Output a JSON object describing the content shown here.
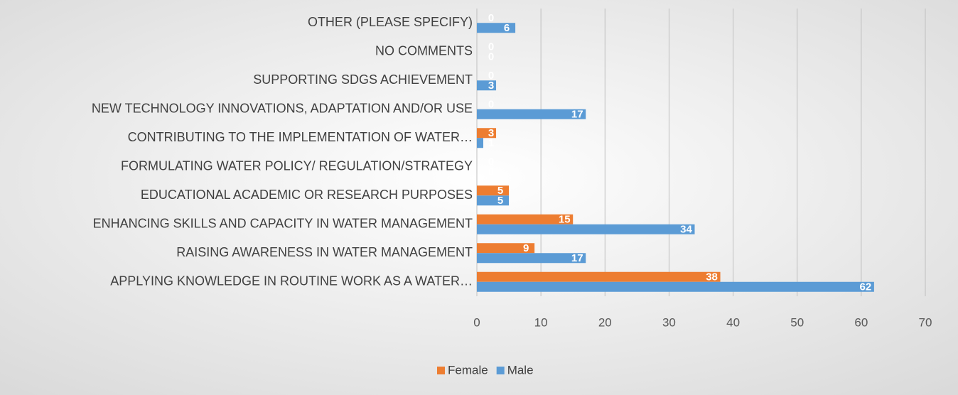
{
  "chart_data": {
    "type": "bar",
    "orientation": "horizontal",
    "categories": [
      "OTHER (PLEASE SPECIFY)",
      "NO COMMENTS",
      "SUPPORTING SDGS ACHIEVEMENT",
      "NEW TECHNOLOGY INNOVATIONS, ADAPTATION AND/OR USE",
      "CONTRIBUTING TO THE IMPLEMENTATION OF WATER…",
      "FORMULATING WATER POLICY/ REGULATION/STRATEGY",
      "EDUCATIONAL ACADEMIC OR RESEARCH PURPOSES",
      "ENHANCING SKILLS AND CAPACITY IN WATER MANAGEMENT",
      "RAISING AWARENESS IN WATER MANAGEMENT",
      "APPLYING KNOWLEDGE IN ROUTINE WORK AS A WATER…"
    ],
    "series": [
      {
        "name": "Female",
        "color": "#ed7d31",
        "values": [
          0,
          0,
          0,
          0,
          3,
          0,
          5,
          15,
          9,
          38
        ]
      },
      {
        "name": "Male",
        "color": "#5b9bd5",
        "values": [
          6,
          0,
          3,
          17,
          1,
          0,
          5,
          34,
          17,
          62
        ]
      }
    ],
    "xlim": [
      0,
      70
    ],
    "xticks": [
      0,
      10,
      20,
      30,
      40,
      50,
      60,
      70
    ],
    "grid": true,
    "legend": "bottom"
  }
}
